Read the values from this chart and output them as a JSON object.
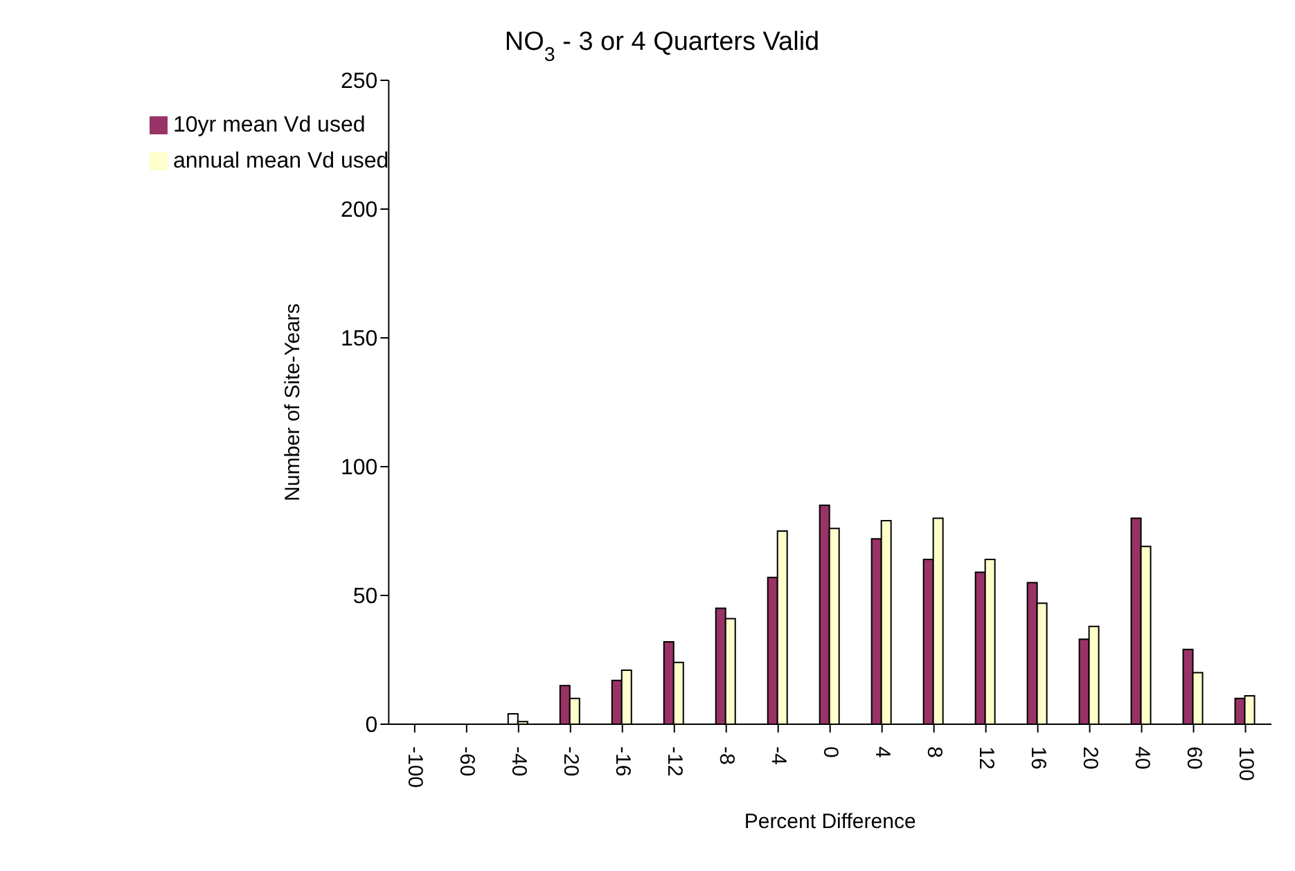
{
  "chart_data": {
    "type": "bar",
    "title": "NO$_{3}$ - 3 or 4 Quarters Valid",
    "xlabel": "Percent Difference",
    "ylabel": "Number of Site-Years",
    "categories": [
      "-100",
      "-60",
      "-40",
      "-20",
      "-16",
      "-12",
      "-8",
      "-4",
      "0",
      "4",
      "8",
      "12",
      "16",
      "20",
      "40",
      "60",
      "100"
    ],
    "series": [
      {
        "name": "10yr mean Vd used",
        "color": "#993366",
        "colors": [
          "#993366",
          "#993366",
          "#ffffff",
          "#993366",
          "#993366",
          "#993366",
          "#993366",
          "#993366",
          "#993366",
          "#993366",
          "#993366",
          "#993366",
          "#993366",
          "#993366",
          "#993366",
          "#993366",
          "#993366"
        ],
        "values": [
          0,
          0,
          4,
          15,
          17,
          32,
          45,
          57,
          85,
          72,
          64,
          59,
          55,
          33,
          80,
          29,
          10
        ]
      },
      {
        "name": "annual mean Vd used",
        "color": "#ffffcc",
        "values": [
          0,
          0,
          1,
          10,
          21,
          24,
          41,
          75,
          76,
          79,
          80,
          64,
          47,
          38,
          69,
          20,
          11
        ]
      }
    ],
    "ylim": [
      0,
      250
    ],
    "yticks": [
      0,
      50,
      100,
      150,
      200,
      250
    ],
    "grid": false,
    "legend": "top left"
  }
}
